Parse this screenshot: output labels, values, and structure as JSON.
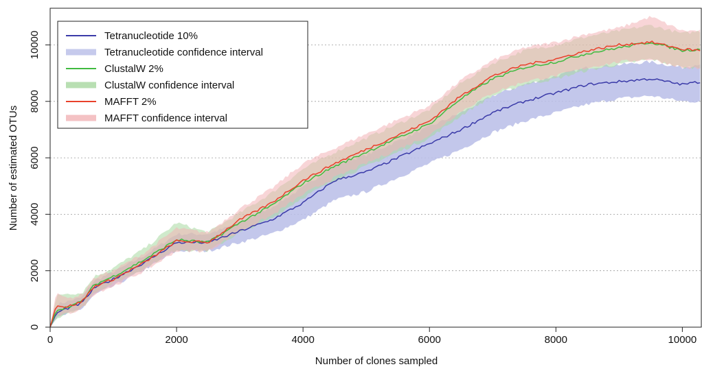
{
  "chart_data": {
    "type": "line",
    "xlabel": "Number of clones sampled",
    "ylabel": "Number of estimated OTUs",
    "xlim": [
      0,
      10300
    ],
    "ylim": [
      0,
      11300
    ],
    "xticks": [
      0,
      2000,
      4000,
      6000,
      8000,
      10000
    ],
    "yticks": [
      0,
      2000,
      4000,
      6000,
      8000,
      10000
    ],
    "grid": "horizontal dotted",
    "legend_position": "top-left",
    "colors": {
      "tetra_line": "#3a3aa8",
      "tetra_band": "#b9bde8",
      "clustal_line": "#3fba3f",
      "clustal_band": "#a7d8a0",
      "mafft_line": "#e8402a",
      "mafft_band": "#f2b3b6",
      "overlap_tint": "#b2a87a",
      "grid": "#999999"
    },
    "series": [
      {
        "name": "Tetranucleotide 10%",
        "band_name": "Tetranucleotide confidence interval",
        "x": [
          0,
          100,
          250,
          500,
          700,
          1000,
          1500,
          2000,
          2500,
          3000,
          3500,
          4000,
          4500,
          5000,
          5500,
          6000,
          6500,
          7000,
          7500,
          8000,
          8500,
          9000,
          9500,
          10000,
          10300
        ],
        "y": [
          0,
          500,
          650,
          850,
          1400,
          1700,
          2300,
          3000,
          3000,
          3400,
          3800,
          4400,
          5200,
          5500,
          6000,
          6500,
          7000,
          7600,
          8000,
          8300,
          8600,
          8700,
          8800,
          8600,
          8700
        ],
        "lower": [
          0,
          300,
          450,
          650,
          1150,
          1450,
          2050,
          2700,
          2700,
          3000,
          3300,
          3800,
          4500,
          4800,
          5300,
          5800,
          6300,
          6900,
          7300,
          7600,
          7900,
          8100,
          8200,
          8000,
          8000
        ],
        "upper": [
          0,
          800,
          900,
          1050,
          1650,
          1950,
          2550,
          3300,
          3300,
          3700,
          4250,
          4950,
          5750,
          6100,
          6600,
          7100,
          7600,
          8200,
          8600,
          8900,
          9200,
          9300,
          9400,
          9200,
          9350
        ]
      },
      {
        "name": "ClustalW 2%",
        "band_name": "ClustalW confidence interval",
        "x": [
          0,
          100,
          250,
          500,
          700,
          1000,
          1500,
          2000,
          2500,
          3000,
          3500,
          4000,
          4500,
          5000,
          5500,
          6000,
          6500,
          7000,
          7500,
          8000,
          8500,
          9000,
          9500,
          10000,
          10300
        ],
        "y": [
          0,
          600,
          700,
          900,
          1500,
          1800,
          2400,
          3100,
          3000,
          3700,
          4300,
          5100,
          5700,
          6200,
          6700,
          7200,
          8100,
          8800,
          9200,
          9400,
          9700,
          9900,
          10100,
          9800,
          9850
        ],
        "lower": [
          0,
          300,
          500,
          650,
          1250,
          1550,
          2100,
          2750,
          2700,
          3350,
          3850,
          4600,
          5200,
          5700,
          6200,
          6700,
          7500,
          8200,
          8600,
          8800,
          9100,
          9300,
          9500,
          9200,
          9200
        ],
        "upper": [
          0,
          1100,
          1200,
          1200,
          1800,
          2100,
          2800,
          3700,
          3350,
          4050,
          4750,
          5600,
          6200,
          6700,
          7200,
          7700,
          8650,
          9350,
          9800,
          10000,
          10300,
          10500,
          10700,
          10400,
          10500
        ]
      },
      {
        "name": "MAFFT 2%",
        "band_name": "MAFFT confidence interval",
        "x": [
          0,
          100,
          250,
          500,
          700,
          1000,
          1500,
          2000,
          2500,
          3000,
          3500,
          4000,
          4500,
          5000,
          5500,
          6000,
          6500,
          7000,
          7500,
          8000,
          8500,
          9000,
          9500,
          10000,
          10300
        ],
        "y": [
          0,
          800,
          700,
          900,
          1450,
          1700,
          2300,
          3050,
          3000,
          3800,
          4400,
          5200,
          5800,
          6300,
          6800,
          7300,
          8200,
          8900,
          9300,
          9500,
          9800,
          10000,
          10100,
          9850,
          9800
        ],
        "lower": [
          0,
          400,
          450,
          650,
          1200,
          1450,
          2000,
          2700,
          2700,
          3400,
          3950,
          4700,
          5300,
          5800,
          6300,
          6800,
          7650,
          8300,
          8700,
          8900,
          9200,
          9400,
          9500,
          9200,
          9150
        ],
        "upper": [
          0,
          1300,
          1000,
          1150,
          1750,
          2000,
          2650,
          3500,
          3350,
          4200,
          4900,
          5800,
          6350,
          6850,
          7350,
          7850,
          8750,
          9450,
          9900,
          10100,
          10400,
          10600,
          11000,
          10500,
          10500
        ]
      }
    ]
  }
}
